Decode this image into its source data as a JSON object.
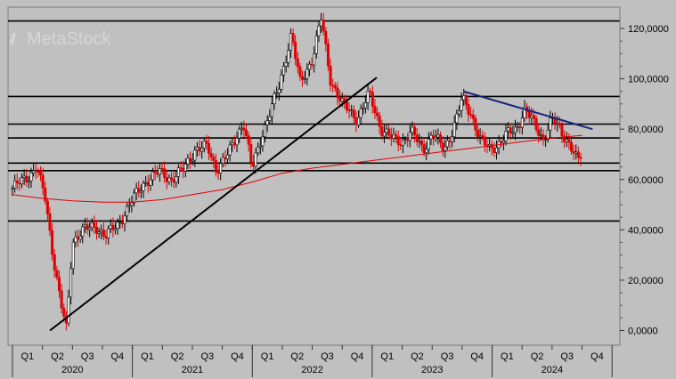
{
  "chart_data": {
    "type": "candlestick",
    "watermark": "MetaStock",
    "y_axis": {
      "min": 0,
      "max": 120000,
      "ticks": [
        0,
        20000,
        40000,
        60000,
        80000,
        100000,
        120000
      ],
      "tick_labels": [
        "0,0000",
        "20,0000",
        "40,0000",
        "60,0000",
        "80,0000",
        "100,0000",
        "120,0000"
      ],
      "side": "right"
    },
    "x_axis": {
      "quarters": [
        "Q1",
        "Q2",
        "Q3",
        "Q4",
        "Q1",
        "Q2",
        "Q3",
        "Q4",
        "Q1",
        "Q2",
        "Q3",
        "Q4",
        "Q1",
        "Q2",
        "Q3",
        "Q4",
        "Q1",
        "Q2",
        "Q3",
        "Q4"
      ],
      "years": [
        "2020",
        "2021",
        "2022",
        "2023",
        "2024"
      ]
    },
    "grid": false,
    "horizontal_levels": [
      123000,
      93000,
      82000,
      76500,
      66500,
      63500,
      43500
    ],
    "trendlines": [
      {
        "from": [
          1.25,
          0
        ],
        "to": [
          12.15,
          100500
        ],
        "color": "#000000"
      },
      {
        "from": [
          15.05,
          95000
        ],
        "to": [
          19.35,
          80000
        ],
        "color": "#1a237e"
      }
    ],
    "moving_average": {
      "color": "#e00000",
      "points": [
        [
          0,
          54000
        ],
        [
          1,
          52500
        ],
        [
          2,
          51500
        ],
        [
          3,
          51000
        ],
        [
          4,
          51000
        ],
        [
          5,
          52000
        ],
        [
          6,
          54000
        ],
        [
          7,
          56000
        ],
        [
          8,
          59000
        ],
        [
          9,
          62500
        ],
        [
          10,
          64500
        ],
        [
          11,
          66000
        ],
        [
          12,
          67500
        ],
        [
          13,
          69000
        ],
        [
          14,
          70500
        ],
        [
          15,
          72000
        ],
        [
          16,
          73500
        ],
        [
          17,
          75000
        ],
        [
          18,
          76500
        ],
        [
          19,
          77500
        ]
      ]
    },
    "price_path": [
      [
        0,
        56500
      ],
      [
        0.6,
        62000
      ],
      [
        0.8,
        65000
      ],
      [
        1.1,
        52000
      ],
      [
        1.35,
        30000
      ],
      [
        1.6,
        12000
      ],
      [
        1.8,
        0
      ],
      [
        2.0,
        35000
      ],
      [
        2.3,
        40000
      ],
      [
        2.8,
        41000
      ],
      [
        3.1,
        38000
      ],
      [
        3.5,
        41500
      ],
      [
        4.0,
        52000
      ],
      [
        4.5,
        60000
      ],
      [
        4.9,
        63000
      ],
      [
        5.3,
        60000
      ],
      [
        5.7,
        64000
      ],
      [
        6.1,
        72000
      ],
      [
        6.5,
        73000
      ],
      [
        6.8,
        64000
      ],
      [
        7.2,
        70000
      ],
      [
        7.7,
        83000
      ],
      [
        8.0,
        64000
      ],
      [
        8.3,
        77000
      ],
      [
        8.9,
        97000
      ],
      [
        9.3,
        118000
      ],
      [
        9.6,
        98000
      ],
      [
        10.0,
        108000
      ],
      [
        10.3,
        124000
      ],
      [
        10.6,
        100000
      ],
      [
        11.0,
        90000
      ],
      [
        11.5,
        84000
      ],
      [
        11.9,
        94000
      ],
      [
        12.3,
        80000
      ],
      [
        12.7,
        76000
      ],
      [
        13.0,
        75000
      ],
      [
        13.3,
        79000
      ],
      [
        13.7,
        72000
      ],
      [
        14.0,
        78000
      ],
      [
        14.4,
        72000
      ],
      [
        14.7,
        80000
      ],
      [
        15.0,
        92000
      ],
      [
        15.3,
        86000
      ],
      [
        15.6,
        76000
      ],
      [
        15.9,
        72000
      ],
      [
        16.2,
        74000
      ],
      [
        16.5,
        78000
      ],
      [
        16.8,
        80000
      ],
      [
        17.1,
        88000
      ],
      [
        17.4,
        82000
      ],
      [
        17.7,
        76000
      ],
      [
        18.0,
        84000
      ],
      [
        18.3,
        79000
      ],
      [
        18.6,
        74000
      ],
      [
        18.85,
        67000
      ],
      [
        19.0,
        70000
      ]
    ]
  }
}
